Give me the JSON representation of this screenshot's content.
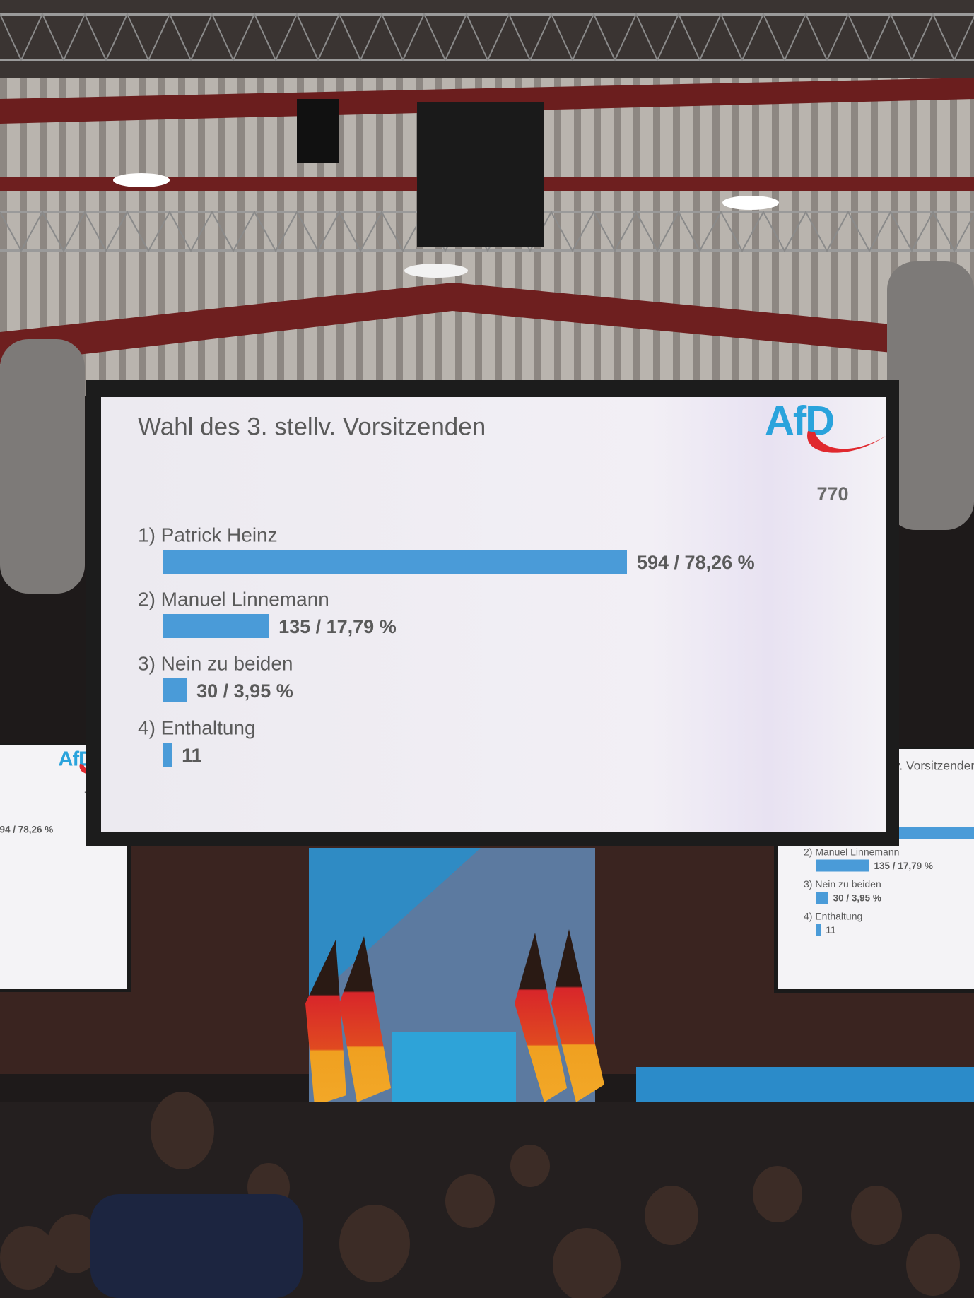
{
  "chart_data": {
    "type": "bar",
    "orientation": "horizontal",
    "title": "Wahl des 3. stellv. Vorsitzenden",
    "logo": "AfD",
    "annotation": "770",
    "categories": [
      "1) Patrick Heinz",
      "2) Manuel Linnemann",
      "3) Nein zu beiden",
      "4) Enthaltung"
    ],
    "values": [
      594,
      135,
      30,
      11
    ],
    "value_labels": [
      "594 / 78,26 %",
      "135 / 17,79 %",
      "30 / 3,95 %",
      "11"
    ],
    "color": "#4a9bd8"
  }
}
